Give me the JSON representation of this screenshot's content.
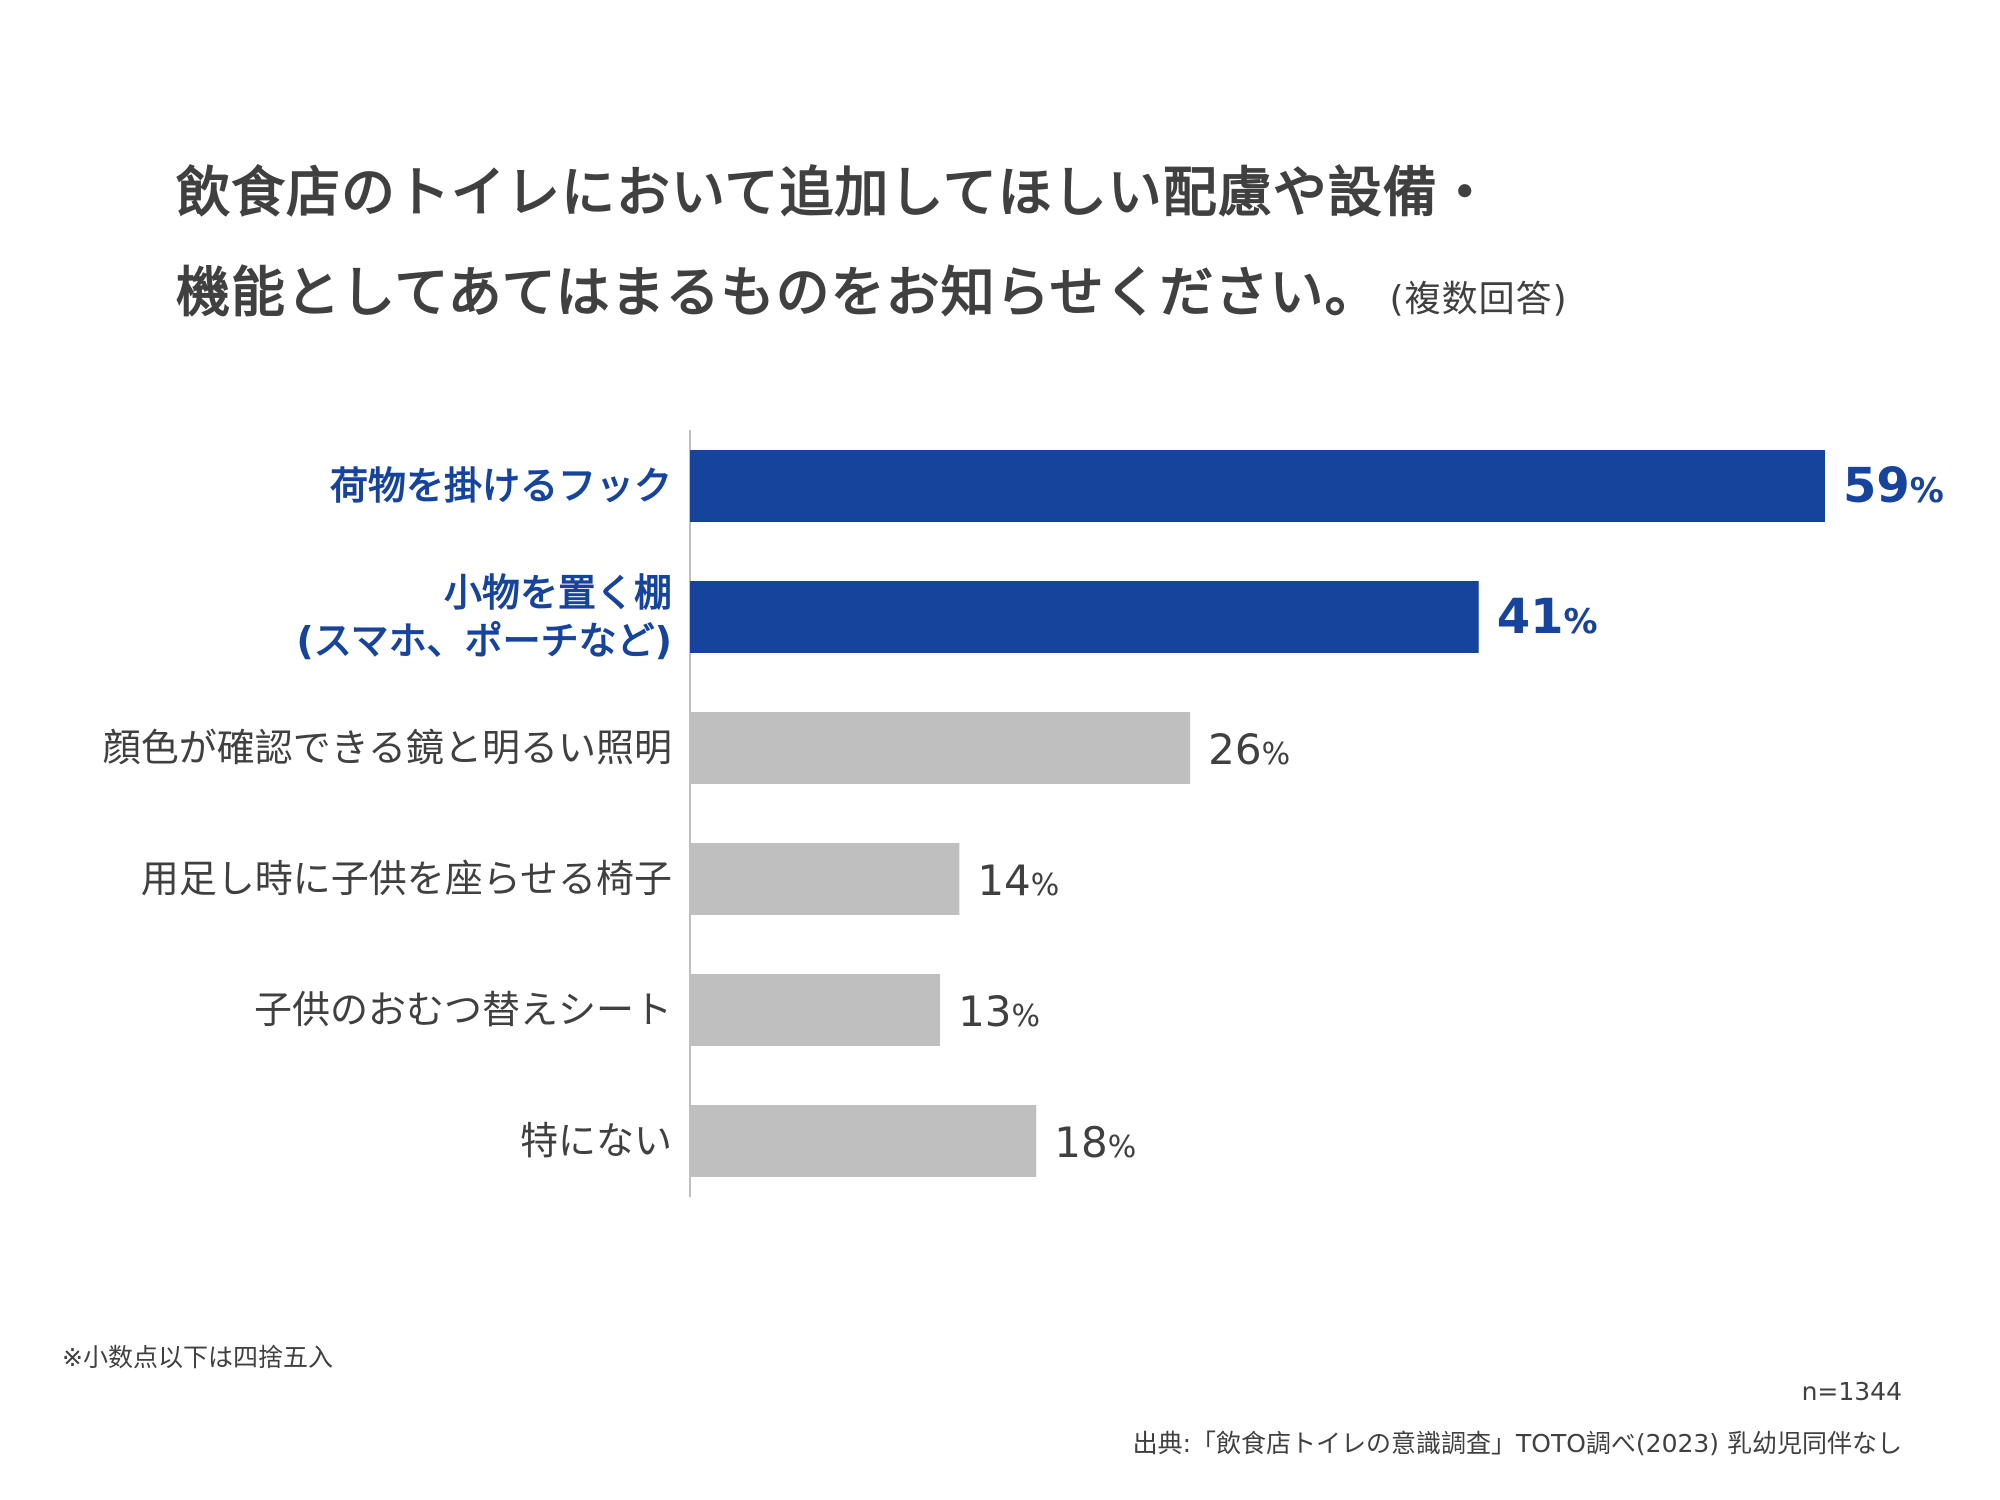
{
  "title": {
    "line1": "飲食店のトイレにおいて追加してほしい配慮や設備・",
    "line2": "機能としてあてはまるものをお知らせください。",
    "note": "(複数回答)"
  },
  "chart_data": {
    "type": "bar",
    "orientation": "horizontal",
    "categories": [
      "荷物を掛けるフック",
      "小物を置く棚\n(スマホ、ポーチなど)",
      "顔色が確認できる鏡と明るい照明",
      "用足し時に子供を座らせる椅子",
      "子供のおむつ替えシート",
      "特にない"
    ],
    "values": [
      59,
      41,
      26,
      14,
      13,
      18
    ],
    "unit": "%",
    "highlighted": [
      true,
      true,
      false,
      false,
      false,
      false
    ],
    "xlim": [
      0,
      59
    ],
    "grid": false,
    "legend": "none"
  },
  "colors": {
    "highlight": "#16449c",
    "normal": "#bfbfbf",
    "axis": "#bfbfbf",
    "text": "#404040"
  },
  "footer": {
    "rounding_note": "※小数点以下は四捨五入",
    "sample_size": "n=1344",
    "source": "出典:「飲食店トイレの意識調査」TOTO調べ(2023) 乳幼児同伴なし"
  }
}
